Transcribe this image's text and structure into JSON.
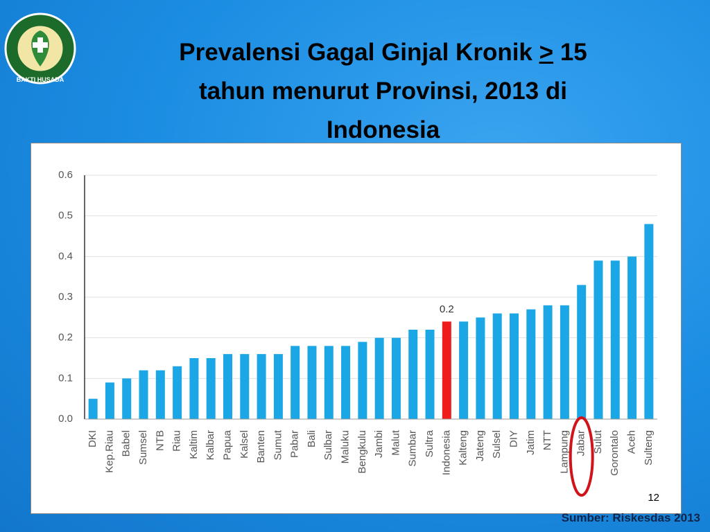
{
  "slide": {
    "logo_text": "BAKTI HUSADA",
    "title": {
      "line1_before": "Prevalensi Gagal Ginjal Kronik",
      "symbol": ">",
      "line1_after": "15",
      "line2": "tahun menurut Provinsi, 2013 di",
      "line3": "Indonesia"
    },
    "page_number": "12",
    "source": "Sumber:  Riskesdas 2013"
  },
  "chart_data": {
    "type": "bar",
    "categories": [
      "DKI",
      "Kep.Riau",
      "Babel",
      "Sumsel",
      "NTB",
      "Riau",
      "Kaltim",
      "Kalbar",
      "Papua",
      "Kalsel",
      "Banten",
      "Sumut",
      "Pabar",
      "Bali",
      "Sulbar",
      "Maluku",
      "Bengkulu",
      "Jambi",
      "Malut",
      "Sumbar",
      "Sultra",
      "Indonesia",
      "Kalteng",
      "Jateng",
      "Sulsel",
      "DIY",
      "Jatim",
      "NTT",
      "Lampung",
      "Jabar",
      "Sulut",
      "Gorontalo",
      "Aceh",
      "Sulteng"
    ],
    "values": [
      0.05,
      0.09,
      0.1,
      0.12,
      0.12,
      0.13,
      0.15,
      0.15,
      0.16,
      0.16,
      0.16,
      0.16,
      0.18,
      0.18,
      0.18,
      0.18,
      0.19,
      0.2,
      0.2,
      0.22,
      0.22,
      0.24,
      0.24,
      0.25,
      0.26,
      0.26,
      0.27,
      0.28,
      0.28,
      0.33,
      0.39,
      0.39,
      0.4,
      0.48
    ],
    "value_labels": [
      null,
      null,
      null,
      null,
      null,
      null,
      null,
      null,
      null,
      null,
      null,
      null,
      null,
      null,
      null,
      null,
      null,
      null,
      null,
      null,
      null,
      "0.2",
      null,
      null,
      null,
      null,
      null,
      null,
      null,
      null,
      null,
      null,
      null,
      null
    ],
    "colors": [
      "#1ba6e6",
      "#1ba6e6",
      "#1ba6e6",
      "#1ba6e6",
      "#1ba6e6",
      "#1ba6e6",
      "#1ba6e6",
      "#1ba6e6",
      "#1ba6e6",
      "#1ba6e6",
      "#1ba6e6",
      "#1ba6e6",
      "#1ba6e6",
      "#1ba6e6",
      "#1ba6e6",
      "#1ba6e6",
      "#1ba6e6",
      "#1ba6e6",
      "#1ba6e6",
      "#1ba6e6",
      "#1ba6e6",
      "#ee1c1c",
      "#1ba6e6",
      "#1ba6e6",
      "#1ba6e6",
      "#1ba6e6",
      "#1ba6e6",
      "#1ba6e6",
      "#1ba6e6",
      "#1ba6e6",
      "#1ba6e6",
      "#1ba6e6",
      "#1ba6e6",
      "#1ba6e6"
    ],
    "ylim": [
      0,
      0.6
    ],
    "yticks": [
      {
        "value": 0,
        "label": "0.0"
      },
      0.1,
      0.2,
      0.3,
      0.4,
      0.5,
      0.6
    ],
    "grid": true
  }
}
